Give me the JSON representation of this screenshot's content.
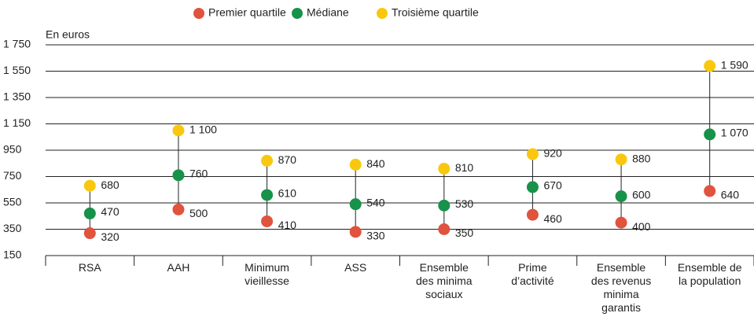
{
  "chart_data": {
    "type": "dot",
    "y_axis_label": "En euros",
    "categories": [
      "RSA",
      "AAH",
      "Minimum vieillesse",
      "ASS",
      "Ensemble des minima sociaux",
      "Prime d’activité",
      "Ensemble des revenus minima garantis",
      "Ensemble de la population"
    ],
    "series": [
      {
        "name": "Premier quartile",
        "color": "#e0533d",
        "values": [
          320,
          500,
          410,
          330,
          350,
          460,
          400,
          640
        ],
        "value_labels": [
          "320",
          "500",
          "410",
          "330",
          "350",
          "460",
          "400",
          "640"
        ]
      },
      {
        "name": "Médiane",
        "color": "#17924a",
        "values": [
          470,
          760,
          610,
          540,
          530,
          670,
          600,
          1070
        ],
        "value_labels": [
          "470",
          "760",
          "610",
          "540",
          "530",
          "670",
          "600",
          "1 070"
        ]
      },
      {
        "name": "Troisième quartile",
        "color": "#f9c80e",
        "values": [
          680,
          1100,
          870,
          840,
          810,
          920,
          880,
          1590
        ],
        "value_labels": [
          "680",
          "1 100",
          "870",
          "840",
          "810",
          "920",
          "880",
          "1 590"
        ]
      }
    ],
    "ylim": [
      150,
      1750
    ],
    "yticks": [
      150,
      350,
      550,
      750,
      950,
      {
        "value": 1150,
        "label": "1 150"
      },
      {
        "value": 1350,
        "label": "1 350"
      },
      {
        "value": 1550,
        "label": "1 550"
      },
      {
        "value": 1750,
        "label": "1 750"
      }
    ],
    "grid": true,
    "legend": "top"
  }
}
